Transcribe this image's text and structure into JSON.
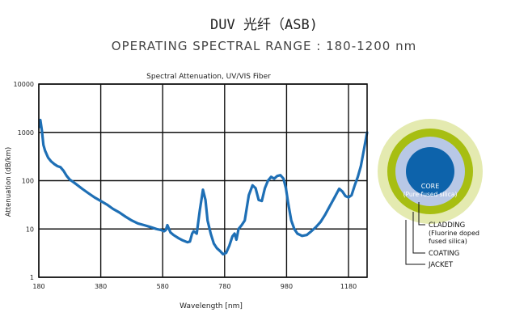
{
  "header": {
    "title": "DUV 光纤（ASB)",
    "subtitle": "OPERATING SPECTRAL RANGE : 180-1200 nm"
  },
  "chart_data": {
    "type": "line",
    "title": "Spectral Attenuation, UV/VIS Fiber",
    "xlabel": "Wavelength [nm]",
    "ylabel": "Attenuation (dB/km)",
    "xlim": [
      180,
      1240
    ],
    "ylim": [
      1,
      10000
    ],
    "yscale": "log",
    "grid": true,
    "x_ticks": [
      180,
      380,
      580,
      780,
      980,
      1180
    ],
    "y_ticks": [
      {
        "value": 1,
        "label": "1"
      },
      {
        "value": 10,
        "label": "10"
      },
      {
        "value": 100,
        "label": "100"
      },
      {
        "value": 1000,
        "label": "1000"
      },
      {
        "value": 10000,
        "label": "10000"
      }
    ],
    "line_color": "#1e6fb5",
    "series": [
      {
        "x": [
          182,
          185,
          190,
          195,
          200,
          210,
          220,
          230,
          240,
          250,
          260,
          270,
          280,
          290,
          300,
          320,
          340,
          360,
          380,
          400,
          420,
          440,
          460,
          480,
          500,
          520,
          540,
          560,
          575,
          585,
          590,
          595,
          605,
          615,
          630,
          645,
          660,
          668,
          675,
          680,
          690,
          700,
          710,
          718,
          725,
          735,
          745,
          755,
          765,
          775,
          785,
          795,
          805,
          812,
          818,
          825,
          835,
          845,
          858,
          870,
          880,
          890,
          900,
          910,
          920,
          930,
          940,
          950,
          960,
          970,
          978,
          985,
          995,
          1005,
          1015,
          1030,
          1045,
          1060,
          1075,
          1090,
          1105,
          1120,
          1135,
          1150,
          1160,
          1170,
          1180,
          1190,
          1200,
          1210,
          1220,
          1230,
          1240
        ],
        "y": [
          1300,
          1800,
          1100,
          550,
          420,
          300,
          250,
          220,
          200,
          190,
          160,
          125,
          105,
          95,
          85,
          68,
          55,
          45,
          38,
          32,
          26,
          22,
          18,
          15,
          13,
          12,
          11,
          10,
          9.5,
          9,
          9.5,
          12,
          8.5,
          7.5,
          6.5,
          5.8,
          5.3,
          5.5,
          8,
          9,
          8,
          25,
          65,
          40,
          15,
          8,
          5,
          4,
          3.5,
          3,
          3.2,
          4.5,
          7,
          8,
          6,
          10,
          12,
          15,
          50,
          80,
          70,
          40,
          38,
          70,
          100,
          120,
          110,
          125,
          130,
          110,
          70,
          35,
          15,
          10,
          8,
          7.2,
          7.5,
          9,
          11,
          14,
          20,
          30,
          45,
          68,
          60,
          48,
          45,
          50,
          80,
          120,
          200,
          450,
          1000
        ]
      }
    ]
  },
  "fiber": {
    "labels": {
      "core": "CORE",
      "core_sub": "(Pure fused silica)",
      "cladding": "CLADDING",
      "cladding_sub1": "(Fluorine doped",
      "cladding_sub2": "fused silica)",
      "coating": "COATING",
      "jacket": "JACKET"
    },
    "colors": {
      "jacket": "#e4eab0",
      "coating": "#a7be12",
      "cladding": "#b8c8e6",
      "core": "#0d63ab"
    }
  }
}
